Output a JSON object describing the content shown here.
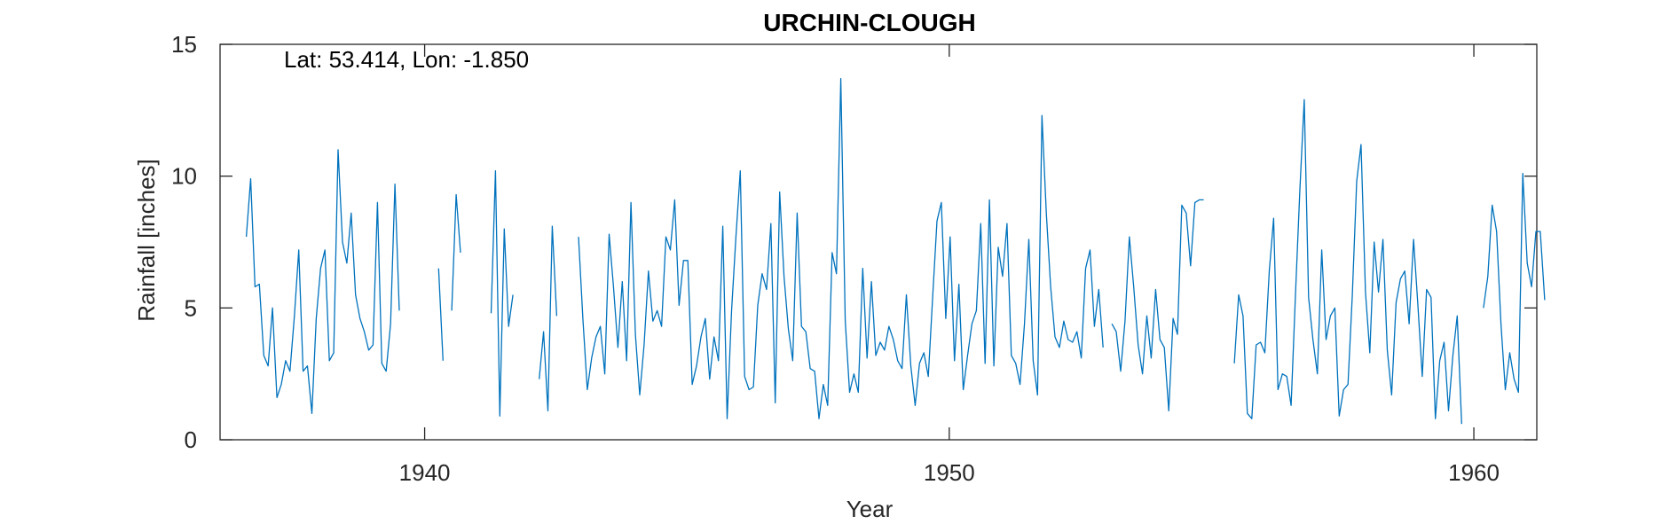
{
  "chart_data": {
    "type": "line",
    "title": "URCHIN-CLOUGH",
    "xlabel": "Year",
    "ylabel": "Rainfall [inches]",
    "annotation": "Lat: 53.414, Lon: -1.850",
    "xlim": [
      1936.1,
      1961.2
    ],
    "ylim": [
      0,
      15
    ],
    "xticks": [
      1940,
      1950,
      1960
    ],
    "yticks": [
      0,
      5,
      10,
      15
    ],
    "grid": false,
    "line_color": "#0072BD",
    "series": [
      {
        "values": [
          7.7,
          9.9,
          5.8,
          5.9,
          3.2,
          2.8,
          5.0,
          1.6,
          2.1,
          3.0,
          2.6,
          4.7,
          7.2,
          2.6,
          2.8,
          1.0,
          4.6,
          6.5,
          7.2,
          3.0,
          3.3,
          11.0,
          7.5,
          6.7,
          8.6,
          5.5,
          4.6,
          4.1,
          3.4,
          3.6,
          9.0,
          2.9,
          2.6,
          4.4,
          9.7,
          4.9,
          null,
          null,
          null,
          null,
          null,
          null,
          null,
          null,
          6.5,
          3.0,
          null,
          4.9,
          9.3,
          7.1,
          null,
          null,
          null,
          null,
          null,
          null,
          4.8,
          10.2,
          0.9,
          8.0,
          4.3,
          5.5,
          null,
          null,
          null,
          null,
          null,
          2.3,
          4.1,
          1.1,
          8.1,
          4.7,
          null,
          null,
          null,
          null,
          7.7,
          4.6,
          1.9,
          3.1,
          3.9,
          4.3,
          2.5,
          7.8,
          5.8,
          3.5,
          6.0,
          3.0,
          9.0,
          4.0,
          1.7,
          3.6,
          6.4,
          4.5,
          4.9,
          4.3,
          7.7,
          7.2,
          9.1,
          5.1,
          6.8,
          6.8,
          2.1,
          2.8,
          3.9,
          4.6,
          2.3,
          3.9,
          3.0,
          8.1,
          0.8,
          4.9,
          7.7,
          10.2,
          2.4,
          1.9,
          2.0,
          5.1,
          6.3,
          5.7,
          8.2,
          1.4,
          9.4,
          6.2,
          4.2,
          3.0,
          8.6,
          4.3,
          4.1,
          2.7,
          2.6,
          0.8,
          2.1,
          1.3,
          7.1,
          6.3,
          13.7,
          4.5,
          1.8,
          2.5,
          1.8,
          6.5,
          3.1,
          6.0,
          3.2,
          3.7,
          3.4,
          4.3,
          3.8,
          3.0,
          2.7,
          5.5,
          2.8,
          1.3,
          2.9,
          3.3,
          2.4,
          5.4,
          8.3,
          9.0,
          4.6,
          7.7,
          3.0,
          5.9,
          1.9,
          3.2,
          4.4,
          4.9,
          8.2,
          2.9,
          9.1,
          2.8,
          7.3,
          6.2,
          8.2,
          3.2,
          2.9,
          2.1,
          4.4,
          7.6,
          3.0,
          1.7,
          12.3,
          8.6,
          5.8,
          3.9,
          3.5,
          4.5,
          3.8,
          3.7,
          4.1,
          3.1,
          6.5,
          7.2,
          4.3,
          5.7,
          3.5,
          null,
          4.4,
          4.1,
          2.6,
          4.5,
          7.7,
          5.8,
          3.6,
          2.5,
          4.7,
          3.1,
          5.7,
          3.8,
          3.5,
          1.1,
          4.6,
          4.0,
          8.9,
          8.6,
          6.6,
          9.0,
          9.1,
          9.1,
          null,
          null,
          null,
          null,
          null,
          null,
          2.9,
          5.5,
          4.7,
          1.0,
          0.8,
          3.6,
          3.7,
          3.3,
          6.4,
          8.4,
          1.9,
          2.5,
          2.4,
          1.3,
          5.5,
          9.5,
          12.9,
          5.4,
          3.8,
          2.5,
          7.2,
          3.8,
          4.7,
          5.0,
          0.9,
          1.9,
          2.1,
          5.5,
          9.8,
          11.2,
          5.6,
          3.3,
          7.5,
          5.6,
          7.6,
          3.4,
          1.7,
          5.2,
          6.1,
          6.4,
          4.4,
          7.6,
          5.1,
          2.4,
          5.7,
          5.4,
          0.8,
          3.0,
          3.7,
          1.1,
          3.2,
          4.7,
          0.6,
          null,
          null,
          null,
          null,
          5.0,
          6.2,
          8.9,
          7.9,
          4.4,
          1.9,
          3.3,
          2.3,
          1.8,
          10.1,
          6.7,
          5.8,
          7.9,
          7.9,
          5.3
        ]
      }
    ]
  }
}
